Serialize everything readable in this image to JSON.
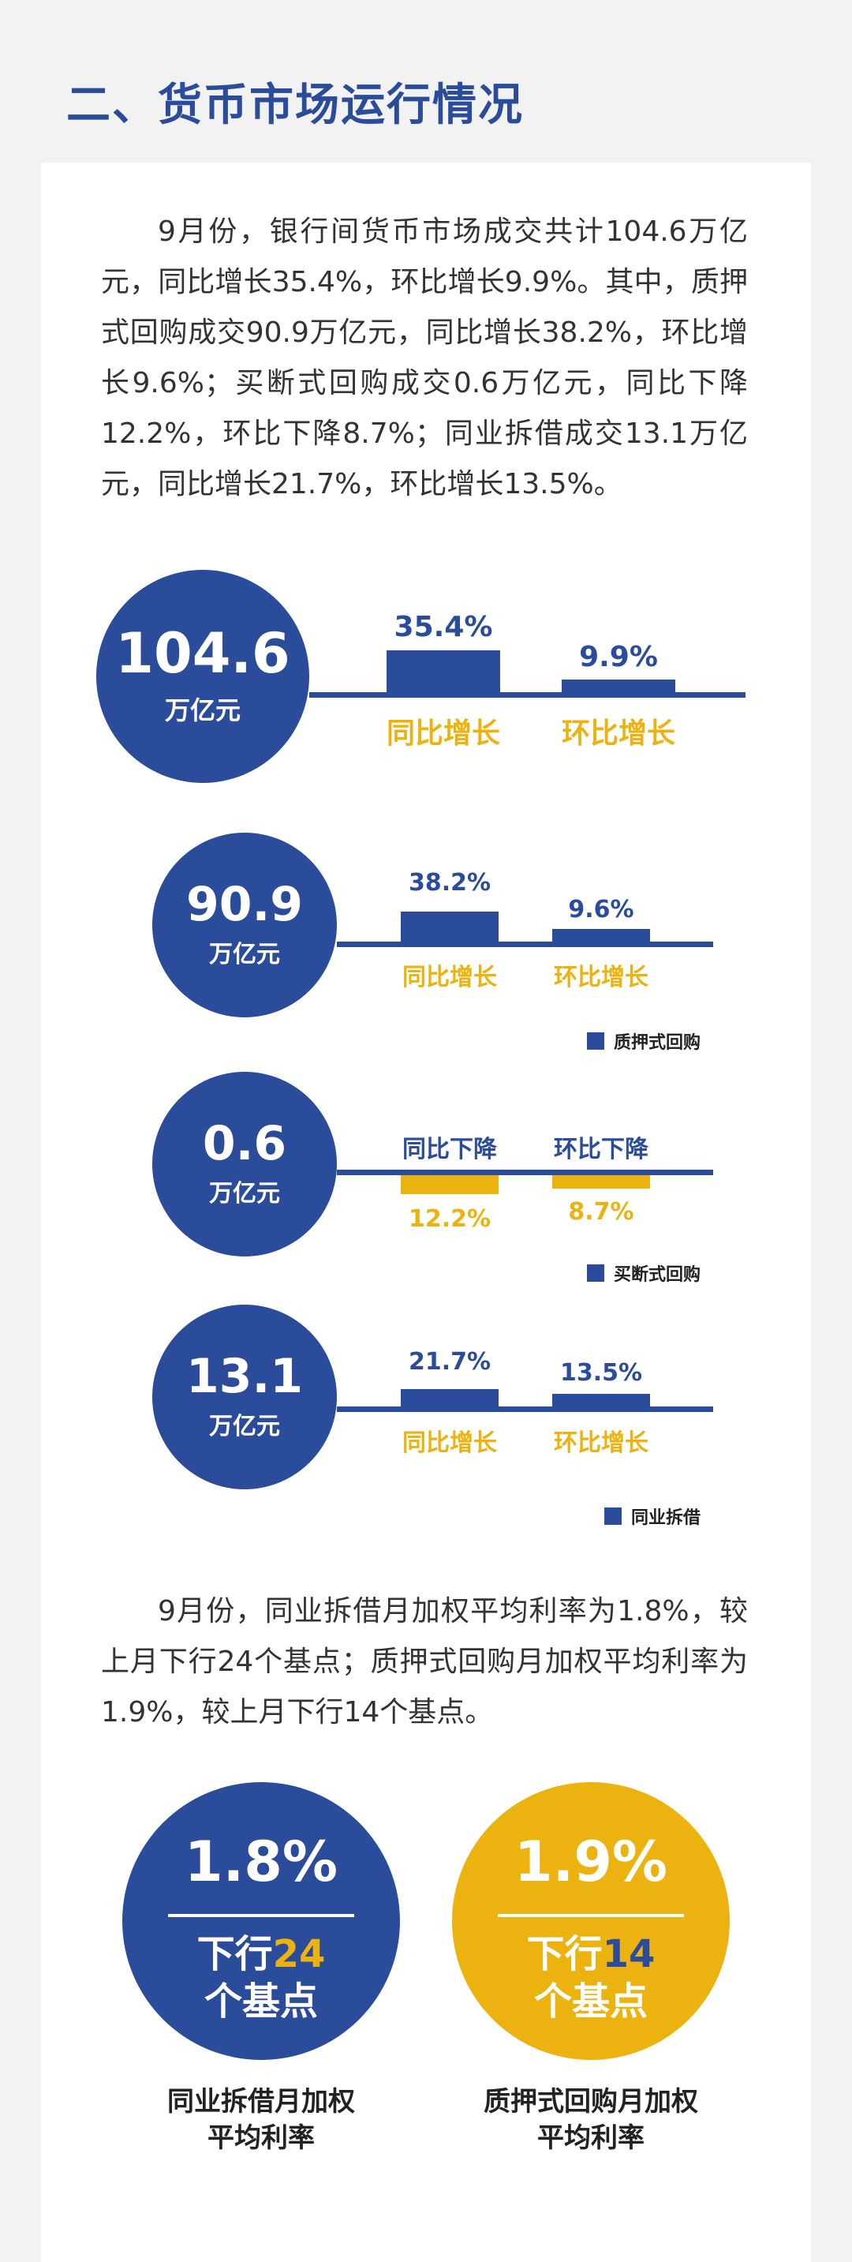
{
  "title": "二、货币市场运行情况",
  "paragraph1": "9月份，银行间货币市场成交共计104.6万亿元，同比增长35.4%，环比增长9.9%。其中，质押式回购成交90.9万亿元，同比增长38.2%，环比增长9.6%；买断式回购成交0.6万亿元，同比下降12.2%，环比下降8.7%；同业拆借成交13.1万亿元，同比增长21.7%，环比增长13.5%。",
  "paragraph2": "9月份，同业拆借月加权平均利率为1.8%，较上月下行24个基点；质押式回购月加权平均利率为1.9%，较上月下行14个基点。",
  "colors": {
    "primary": "#2b4c9b",
    "accent": "#ecb310"
  },
  "chart_data": [
    {
      "type": "bar",
      "total": "104.6",
      "unit": "万亿元",
      "categories": [
        "同比增长",
        "环比增长"
      ],
      "values": [
        35.4,
        9.9
      ],
      "value_labels": [
        "35.4%",
        "9.9%"
      ]
    },
    {
      "type": "bar",
      "total": "90.9",
      "unit": "万亿元",
      "categories": [
        "同比增长",
        "环比增长"
      ],
      "values": [
        38.2,
        9.6
      ],
      "value_labels": [
        "38.2%",
        "9.6%"
      ],
      "legend": "质押式回购"
    },
    {
      "type": "bar",
      "total": "0.6",
      "unit": "万亿元",
      "categories": [
        "同比下降",
        "环比下降"
      ],
      "values": [
        -12.2,
        -8.7
      ],
      "value_labels": [
        "12.2%",
        "8.7%"
      ],
      "legend": "买断式回购"
    },
    {
      "type": "bar",
      "total": "13.1",
      "unit": "万亿元",
      "categories": [
        "同比增长",
        "环比增长"
      ],
      "values": [
        21.7,
        13.5
      ],
      "value_labels": [
        "21.7%",
        "13.5%"
      ],
      "legend": "同业拆借"
    }
  ],
  "rates": [
    {
      "value": "1.8%",
      "line1_prefix": "下行",
      "bp": "24",
      "line2": "个基点",
      "caption1": "同业拆借月加权",
      "caption2": "平均利率"
    },
    {
      "value": "1.9%",
      "line1_prefix": "下行",
      "bp": "14",
      "line2": "个基点",
      "caption1": "质押式回购月加权",
      "caption2": "平均利率"
    }
  ]
}
